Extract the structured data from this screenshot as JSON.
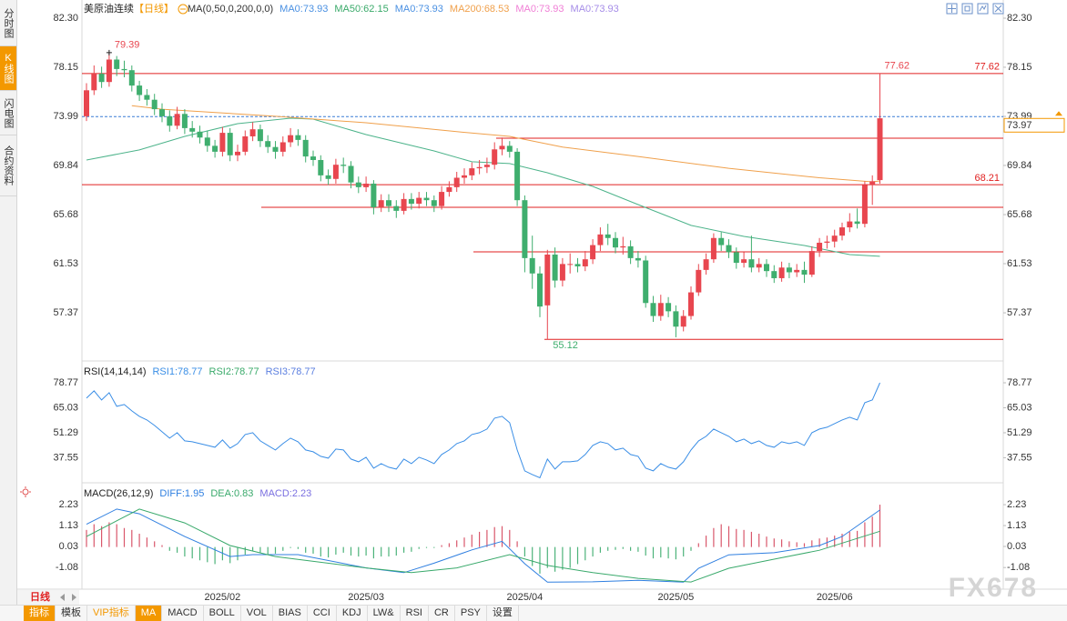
{
  "tabs": [
    "分时图",
    "K线图",
    "闪电图",
    "合约资料"
  ],
  "period_tab": "日线",
  "toolbar": [
    "指标",
    "模板",
    "VIP指标",
    "MA",
    "MACD",
    "BOLL",
    "VOL",
    "BIAS",
    "CCI",
    "KDJ",
    "LW&",
    "RSI",
    "CR",
    "PSY",
    "设置"
  ],
  "watermark": "FX678",
  "chart_data": [
    {
      "type": "candlestick",
      "title": "美原油连续",
      "period": "【日线】",
      "indicator": "MA(0,50,0,200,0,0)",
      "legend": [
        {
          "text": "MA0:73.93",
          "color": "#4a90e2"
        },
        {
          "text": "MA50:62.15",
          "color": "#3aaa6a"
        },
        {
          "text": "MA0:73.93",
          "color": "#4a90e2"
        },
        {
          "text": "MA200:68.53",
          "color": "#f0a04b"
        },
        {
          "text": "MA0:73.93",
          "color": "#f07fd6"
        },
        {
          "text": "MA0:73.93",
          "color": "#a68de8"
        }
      ],
      "up_color": "#e8464f",
      "down_color": "#3fae6e",
      "ylim": [
        53.45,
        83.07
      ],
      "yticks": [
        {
          "value": 82.3,
          "label": "82.30"
        },
        78.15,
        73.99,
        69.84,
        65.68,
        61.53,
        57.37
      ],
      "categories": [
        null,
        null,
        null,
        null,
        null,
        null,
        null,
        null,
        null,
        null,
        null,
        null,
        null,
        null,
        null,
        null,
        null,
        null,
        "2025/02",
        null,
        null,
        null,
        null,
        null,
        null,
        null,
        null,
        null,
        null,
        null,
        null,
        null,
        null,
        null,
        null,
        null,
        null,
        "2025/03",
        null,
        null,
        null,
        null,
        null,
        null,
        null,
        null,
        null,
        null,
        null,
        null,
        null,
        null,
        null,
        null,
        null,
        null,
        null,
        null,
        "2025/04",
        null,
        null,
        null,
        null,
        null,
        null,
        null,
        null,
        null,
        null,
        null,
        null,
        null,
        null,
        null,
        null,
        null,
        null,
        null,
        "2025/05",
        null,
        null,
        null,
        null,
        null,
        null,
        null,
        null,
        null,
        null,
        null,
        null,
        null,
        null,
        null,
        null,
        null,
        null,
        null,
        null,
        "2025/06",
        null,
        null,
        null,
        null,
        null,
        null
      ],
      "open": [
        74.0,
        76.2,
        77.6,
        76.9,
        78.8,
        78.0,
        77.9,
        76.6,
        75.8,
        75.4,
        74.6,
        74.0,
        73.2,
        74.2,
        73.0,
        72.7,
        72.2,
        71.5,
        71.0,
        72.6,
        70.7,
        71.0,
        72.3,
        72.9,
        71.9,
        71.4,
        71.0,
        71.8,
        72.4,
        72.0,
        70.6,
        70.3,
        69.0,
        68.7,
        69.9,
        69.8,
        68.4,
        68.0,
        68.3,
        66.3,
        66.9,
        66.4,
        66.0,
        67.0,
        66.6,
        67.1,
        66.9,
        66.4,
        67.6,
        68.0,
        68.8,
        69.0,
        69.6,
        69.7,
        69.9,
        71.2,
        71.5,
        71.0,
        66.9,
        62.0,
        60.7,
        58.0,
        62.3,
        60.1,
        61.5,
        61.5,
        61.3,
        61.9,
        63.1,
        64.0,
        63.7,
        62.9,
        63.0,
        62.0,
        61.8,
        58.2,
        57.1,
        58.2,
        57.5,
        56.2,
        57.1,
        59.1,
        61.0,
        61.9,
        63.7,
        63.1,
        62.5,
        61.6,
        61.9,
        61.2,
        61.5,
        60.9,
        60.3,
        61.2,
        60.8,
        61.0,
        60.6,
        62.6,
        63.3,
        63.4,
        63.9,
        64.6,
        65.1,
        64.9,
        68.2,
        68.6
      ],
      "high": [
        76.8,
        78.3,
        78.2,
        79.39,
        79.1,
        78.7,
        78.3,
        77.0,
        76.3,
        75.9,
        75.1,
        74.5,
        74.8,
        74.6,
        73.6,
        73.2,
        72.8,
        72.0,
        73.1,
        73.0,
        71.6,
        72.8,
        73.5,
        73.3,
        72.4,
        71.9,
        72.3,
        73.0,
        72.9,
        72.4,
        71.1,
        70.7,
        69.5,
        70.4,
        70.5,
        70.2,
        68.9,
        68.9,
        68.6,
        67.4,
        67.4,
        66.9,
        67.5,
        67.5,
        67.6,
        67.6,
        67.3,
        68.1,
        68.5,
        69.3,
        69.6,
        70.1,
        70.3,
        70.5,
        71.8,
        72.2,
        71.9,
        71.3,
        67.3,
        63.9,
        61.3,
        62.7,
        62.9,
        62.0,
        62.4,
        62.0,
        62.6,
        63.6,
        64.6,
        64.9,
        64.2,
        63.8,
        63.5,
        62.6,
        62.2,
        58.8,
        58.9,
        58.7,
        58.0,
        57.6,
        59.6,
        61.5,
        62.4,
        64.1,
        64.2,
        63.6,
        62.9,
        62.5,
        63.9,
        62.0,
        61.9,
        61.4,
        61.7,
        61.6,
        61.5,
        61.7,
        63.0,
        63.7,
        63.9,
        64.4,
        65.0,
        65.8,
        66.2,
        68.5,
        69.0,
        77.62
      ],
      "low": [
        73.6,
        75.8,
        76.4,
        76.5,
        77.4,
        77.3,
        76.1,
        75.3,
        74.9,
        74.1,
        73.5,
        72.7,
        72.9,
        72.5,
        72.2,
        71.7,
        71.0,
        70.5,
        70.6,
        70.2,
        70.2,
        70.7,
        71.9,
        71.4,
        70.9,
        70.4,
        70.6,
        71.4,
        71.5,
        70.1,
        69.8,
        68.5,
        68.2,
        68.3,
        69.2,
        67.9,
        67.5,
        67.6,
        65.7,
        65.9,
        65.9,
        65.4,
        65.7,
        66.1,
        66.2,
        66.4,
        65.9,
        66.1,
        67.2,
        67.6,
        68.3,
        68.6,
        69.1,
        69.2,
        69.5,
        70.7,
        70.5,
        66.4,
        60.8,
        59.4,
        57.0,
        55.12,
        59.5,
        59.6,
        60.7,
        60.8,
        60.9,
        61.5,
        62.6,
        63.1,
        62.4,
        62.3,
        61.5,
        61.2,
        57.8,
        56.6,
        56.7,
        57.0,
        55.3,
        55.8,
        56.8,
        58.8,
        60.6,
        61.6,
        62.6,
        62.0,
        61.1,
        61.2,
        60.8,
        60.8,
        60.4,
        59.9,
        60.0,
        60.3,
        60.4,
        59.9,
        60.4,
        62.1,
        62.8,
        62.9,
        63.5,
        64.2,
        64.5,
        64.6,
        66.5,
        68.3
      ],
      "close": [
        76.2,
        77.6,
        76.9,
        78.8,
        78.0,
        77.9,
        76.6,
        75.8,
        75.4,
        74.6,
        74.0,
        73.2,
        74.2,
        73.0,
        72.7,
        72.2,
        71.5,
        71.0,
        72.6,
        70.7,
        71.0,
        72.3,
        72.9,
        71.9,
        71.4,
        71.0,
        71.8,
        72.4,
        72.0,
        70.6,
        70.3,
        69.0,
        68.7,
        69.9,
        69.8,
        68.4,
        68.0,
        68.3,
        66.3,
        66.9,
        66.4,
        66.0,
        67.0,
        66.6,
        67.1,
        66.9,
        66.4,
        67.6,
        68.0,
        68.8,
        69.0,
        69.6,
        69.7,
        69.9,
        71.2,
        71.5,
        71.0,
        66.9,
        62.0,
        60.7,
        57.9,
        62.3,
        60.1,
        61.5,
        61.5,
        61.3,
        61.9,
        63.1,
        64.0,
        63.7,
        62.9,
        63.0,
        62.0,
        61.8,
        58.2,
        57.1,
        58.2,
        57.5,
        56.2,
        57.1,
        59.1,
        61.0,
        61.9,
        63.7,
        63.1,
        62.5,
        61.6,
        61.9,
        61.2,
        61.5,
        60.9,
        60.3,
        61.2,
        60.8,
        61.0,
        60.6,
        62.6,
        63.3,
        63.4,
        63.9,
        64.6,
        65.1,
        64.9,
        68.2,
        68.5,
        73.83
      ],
      "ma_lines": [
        {
          "color": "#4cb38a",
          "x": [
            0,
            7,
            13,
            20,
            27,
            30,
            37,
            46,
            51,
            56,
            61,
            67,
            73,
            80,
            87,
            95,
            101,
            105
          ],
          "values": [
            70.3,
            71.15,
            72.3,
            73.38,
            73.84,
            73.76,
            72.45,
            71.07,
            70.15,
            70.0,
            69.22,
            68.07,
            66.53,
            64.77,
            63.84,
            63.07,
            62.3,
            62.15
          ]
        },
        {
          "color": "#f0a04b",
          "x": [
            6,
            10,
            25,
            37,
            49,
            56,
            63,
            73,
            85,
            97,
            104,
            105
          ],
          "values": [
            74.9,
            74.6,
            74.0,
            73.45,
            72.7,
            72.3,
            71.4,
            70.6,
            69.6,
            68.8,
            68.45,
            68.53
          ]
        }
      ],
      "hlines": [
        77.62,
        72.15,
        68.21,
        66.3,
        62.53,
        55.12
      ],
      "hline_color": "#e02020",
      "last_price": 73.97,
      "last_price_color": "#3a7bd5"
    },
    {
      "type": "line",
      "title": "RSI(14,14,14)",
      "legend": [
        {
          "text": "RSI1:78.77",
          "color": "#3a8ee6"
        },
        {
          "text": "RSI2:78.77",
          "color": "#3aaa6a"
        },
        {
          "text": "RSI3:78.77",
          "color": "#5b7fe0"
        }
      ],
      "ylim": [
        25.27,
        89.27
      ],
      "yticks": [
        78.77,
        65.03,
        51.29,
        37.55
      ],
      "series": [
        {
          "color": "#3a8ee6",
          "values": [
            70.3,
            74.3,
            69.3,
            73.3,
            65.8,
            66.8,
            63.3,
            60.3,
            58.3,
            55.3,
            51.8,
            48.3,
            51.3,
            46.8,
            46.3,
            45.3,
            44.3,
            43.3,
            47.3,
            42.8,
            45.3,
            50.3,
            51.3,
            46.8,
            44.3,
            41.8,
            45.3,
            48.3,
            46.3,
            41.8,
            40.8,
            38.3,
            37.3,
            42.3,
            41.8,
            36.8,
            35.3,
            37.8,
            31.8,
            34.3,
            32.3,
            31.3,
            36.8,
            34.3,
            37.8,
            36.3,
            34.3,
            39.3,
            41.8,
            45.3,
            46.8,
            50.3,
            51.3,
            53.3,
            59.3,
            60.3,
            56.8,
            41.8,
            30.3,
            28.3,
            26.5,
            36.8,
            31.3,
            35.3,
            35.3,
            35.8,
            39.3,
            44.3,
            46.3,
            45.3,
            41.8,
            42.8,
            39.3,
            38.3,
            31.8,
            30.3,
            34.3,
            32.3,
            31.3,
            35.3,
            41.8,
            46.8,
            49.3,
            53.3,
            51.3,
            49.3,
            46.3,
            47.8,
            45.3,
            46.8,
            44.3,
            43.3,
            46.3,
            45.3,
            46.3,
            44.3,
            51.3,
            53.3,
            54.3,
            56.3,
            58.3,
            59.8,
            58.3,
            67.8,
            69.3,
            78.77
          ]
        }
      ]
    },
    {
      "type": "macd",
      "title": "MACD(26,12,9)",
      "legend": [
        {
          "text": "DIFF:1.95",
          "color": "#2f7fe0"
        },
        {
          "text": "DEA:0.83",
          "color": "#39a96b"
        },
        {
          "text": "MACD:2.23",
          "color": "#7a6fe0"
        }
      ],
      "ylim": [
        -2.22,
        3.19
      ],
      "yticks": [
        2.23,
        1.13,
        0.03,
        -1.08
      ],
      "histogram": {
        "up_color": "#d9576b",
        "down_color": "#4cb37a",
        "values": [
          0.9,
          1.2,
          1.1,
          1.3,
          1.2,
          1.0,
          0.9,
          0.7,
          0.5,
          0.3,
          0.1,
          -0.2,
          -0.3,
          -0.5,
          -0.6,
          -0.7,
          -0.8,
          -0.9,
          -0.7,
          -0.85,
          -0.7,
          -0.4,
          -0.2,
          -0.3,
          -0.4,
          -0.35,
          -0.2,
          -0.05,
          -0.1,
          -0.3,
          -0.35,
          -0.5,
          -0.55,
          -0.4,
          -0.3,
          -0.45,
          -0.5,
          -0.45,
          -0.6,
          -0.5,
          -0.5,
          -0.45,
          -0.3,
          -0.25,
          -0.1,
          -0.05,
          -0.05,
          0.1,
          0.2,
          0.35,
          0.5,
          0.65,
          0.8,
          0.9,
          1.05,
          1.1,
          0.9,
          0.3,
          -0.5,
          -1.0,
          -1.4,
          -1.1,
          -1.3,
          -1.2,
          -1.1,
          -0.9,
          -0.7,
          -0.5,
          -0.3,
          -0.2,
          -0.15,
          -0.1,
          -0.2,
          -0.25,
          -0.45,
          -0.6,
          -0.55,
          -0.6,
          -0.65,
          -0.5,
          -0.2,
          0.2,
          0.6,
          1.0,
          1.2,
          1.1,
          0.95,
          0.9,
          0.8,
          0.7,
          0.55,
          0.45,
          0.4,
          0.3,
          0.25,
          0.2,
          0.35,
          0.45,
          0.5,
          0.6,
          0.7,
          0.8,
          0.85,
          1.3,
          1.6,
          2.23
        ]
      },
      "lines": [
        {
          "color": "#2f7fe0",
          "x": [
            0,
            4,
            7,
            13,
            19,
            22,
            28,
            37,
            42,
            46,
            51,
            55,
            58,
            61,
            67,
            73,
            79,
            81,
            85,
            91,
            97,
            100,
            105
          ],
          "values": [
            1.2,
            2.0,
            1.75,
            0.55,
            -0.5,
            -0.4,
            -0.4,
            -1.1,
            -1.35,
            -0.85,
            -0.15,
            0.3,
            -0.88,
            -1.85,
            -1.83,
            -1.75,
            -1.85,
            -1.12,
            -0.41,
            -0.3,
            0.08,
            0.55,
            1.95
          ]
        },
        {
          "color": "#39a96b",
          "x": [
            0,
            7,
            13,
            19,
            25,
            37,
            43,
            49,
            56,
            61,
            67,
            73,
            80,
            85,
            91,
            97,
            105
          ],
          "values": [
            0.55,
            2.0,
            1.27,
            0.08,
            -0.5,
            -1.1,
            -1.35,
            -1.1,
            -0.4,
            -0.97,
            -1.35,
            -1.65,
            -1.84,
            -1.12,
            -0.64,
            -0.17,
            0.83
          ]
        }
      ]
    }
  ]
}
